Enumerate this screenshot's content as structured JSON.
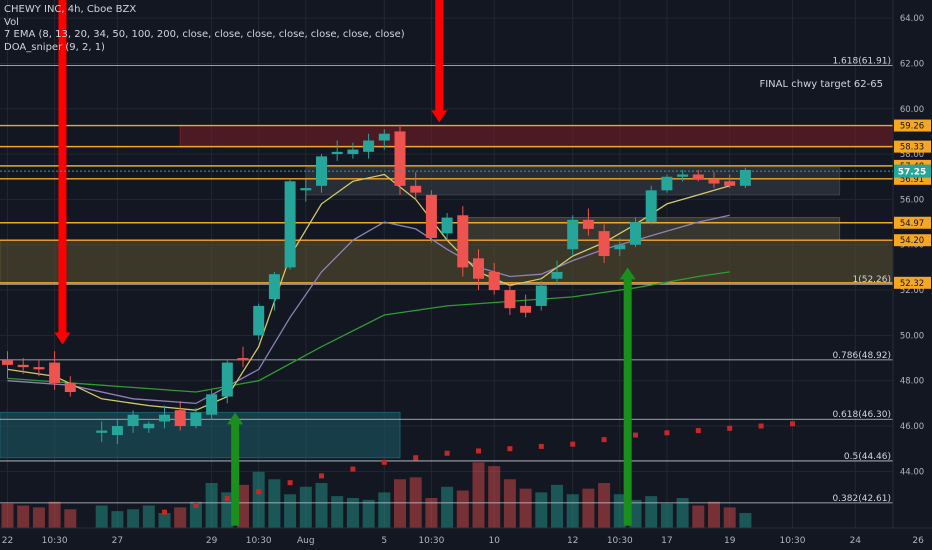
{
  "header": {
    "title": "CHEWY INC, 4h, Cboe BZX",
    "vol_label": "Vol",
    "ema_label": "7 EMA (8, 13, 20, 34, 50, 100, 200, close, close, close, close, close, close, close)",
    "sniper_label": "DOA_sniper (9, 2, 1)"
  },
  "annotations": {
    "target_note": "FINAL chwy target 62-65"
  },
  "colors": {
    "background": "#131722",
    "grid": "#232732",
    "up_candle": "#26a69a",
    "down_candle": "#ef5350",
    "orange_line": "#f5a623",
    "red_arrow": "#ff0000",
    "green_arrow": "#1b8f1b",
    "ema_fast": "#d4c96a",
    "ema_mid": "#8d82b8",
    "ema_slow": "#2e9c32",
    "sniper_dots": "#c62828"
  },
  "chart_data": {
    "type": "candlestick",
    "symbol": "CHEWY INC",
    "interval": "4h",
    "exchange": "Cboe BZX",
    "ylim": [
      41.5,
      64.8
    ],
    "y_ticks": [
      44.0,
      46.0,
      48.0,
      50.0,
      52.0,
      54.0,
      56.0,
      58.0,
      60.0,
      62.0,
      64.0
    ],
    "x_ticks": [
      {
        "label": "22",
        "i": 0
      },
      {
        "label": "10:30",
        "i": 3
      },
      {
        "label": "27",
        "i": 7
      },
      {
        "label": "29",
        "i": 13
      },
      {
        "label": "10:30",
        "i": 16
      },
      {
        "label": "Aug",
        "i": 19
      },
      {
        "label": "5",
        "i": 24
      },
      {
        "label": "10:30",
        "i": 27
      },
      {
        "label": "10",
        "i": 31
      },
      {
        "label": "12",
        "i": 36
      },
      {
        "label": "10:30",
        "i": 39
      },
      {
        "label": "17",
        "i": 42
      },
      {
        "label": "19",
        "i": 46
      },
      {
        "label": "10:30",
        "i": 50
      },
      {
        "label": "24",
        "i": 54
      },
      {
        "label": "26",
        "i": 58
      }
    ],
    "candles": [
      {
        "o": 48.9,
        "h": 49.3,
        "l": 48.1,
        "c": 48.7
      },
      {
        "o": 48.7,
        "h": 49.0,
        "l": 48.3,
        "c": 48.6
      },
      {
        "o": 48.6,
        "h": 48.9,
        "l": 48.2,
        "c": 48.5
      },
      {
        "o": 48.8,
        "h": 49.3,
        "l": 47.6,
        "c": 47.9
      },
      {
        "o": 47.9,
        "h": 48.2,
        "l": 47.3,
        "c": 47.5
      },
      {
        "o": 45.7,
        "h": 46.2,
        "l": 45.3,
        "c": 45.8
      },
      {
        "o": 45.6,
        "h": 46.3,
        "l": 45.2,
        "c": 46.0
      },
      {
        "o": 46.0,
        "h": 46.7,
        "l": 45.7,
        "c": 46.5
      },
      {
        "o": 45.9,
        "h": 46.2,
        "l": 45.7,
        "c": 46.1
      },
      {
        "o": 46.2,
        "h": 46.9,
        "l": 45.9,
        "c": 46.5
      },
      {
        "o": 46.7,
        "h": 47.1,
        "l": 45.8,
        "c": 46.0
      },
      {
        "o": 46.0,
        "h": 46.8,
        "l": 45.9,
        "c": 46.6
      },
      {
        "o": 46.5,
        "h": 47.6,
        "l": 46.3,
        "c": 47.4
      },
      {
        "o": 47.3,
        "h": 48.9,
        "l": 47.0,
        "c": 48.8
      },
      {
        "o": 49.0,
        "h": 49.5,
        "l": 48.6,
        "c": 48.9
      },
      {
        "o": 50.0,
        "h": 51.4,
        "l": 49.8,
        "c": 51.3
      },
      {
        "o": 51.6,
        "h": 52.8,
        "l": 51.1,
        "c": 52.7
      },
      {
        "o": 53.0,
        "h": 56.9,
        "l": 52.9,
        "c": 56.8
      },
      {
        "o": 56.4,
        "h": 56.9,
        "l": 55.9,
        "c": 56.5
      },
      {
        "o": 56.6,
        "h": 58.0,
        "l": 56.3,
        "c": 57.9
      },
      {
        "o": 58.0,
        "h": 58.6,
        "l": 57.7,
        "c": 58.1
      },
      {
        "o": 58.0,
        "h": 58.5,
        "l": 57.8,
        "c": 58.2
      },
      {
        "o": 58.1,
        "h": 58.9,
        "l": 57.8,
        "c": 58.6
      },
      {
        "o": 58.6,
        "h": 59.1,
        "l": 58.2,
        "c": 58.9
      },
      {
        "o": 59.0,
        "h": 59.3,
        "l": 56.2,
        "c": 56.6
      },
      {
        "o": 56.6,
        "h": 57.2,
        "l": 56.0,
        "c": 56.3
      },
      {
        "o": 56.2,
        "h": 56.4,
        "l": 54.1,
        "c": 54.3
      },
      {
        "o": 54.5,
        "h": 55.4,
        "l": 54.2,
        "c": 55.2
      },
      {
        "o": 55.3,
        "h": 55.7,
        "l": 52.6,
        "c": 53.0
      },
      {
        "o": 53.4,
        "h": 53.8,
        "l": 52.0,
        "c": 52.5
      },
      {
        "o": 52.8,
        "h": 53.2,
        "l": 51.8,
        "c": 52.0
      },
      {
        "o": 52.0,
        "h": 52.3,
        "l": 50.9,
        "c": 51.2
      },
      {
        "o": 51.3,
        "h": 51.8,
        "l": 50.8,
        "c": 51.0
      },
      {
        "o": 51.3,
        "h": 52.4,
        "l": 51.1,
        "c": 52.2
      },
      {
        "o": 52.5,
        "h": 53.3,
        "l": 52.3,
        "c": 52.8
      },
      {
        "o": 53.8,
        "h": 55.3,
        "l": 53.5,
        "c": 55.1
      },
      {
        "o": 55.1,
        "h": 55.6,
        "l": 54.4,
        "c": 54.7
      },
      {
        "o": 54.6,
        "h": 54.9,
        "l": 53.2,
        "c": 53.5
      },
      {
        "o": 53.8,
        "h": 54.3,
        "l": 53.5,
        "c": 54.0
      },
      {
        "o": 54.0,
        "h": 55.2,
        "l": 53.9,
        "c": 55.0
      },
      {
        "o": 55.0,
        "h": 56.6,
        "l": 54.9,
        "c": 56.4
      },
      {
        "o": 56.4,
        "h": 57.1,
        "l": 56.3,
        "c": 57.0
      },
      {
        "o": 57.0,
        "h": 57.3,
        "l": 56.8,
        "c": 57.1
      },
      {
        "o": 57.1,
        "h": 57.3,
        "l": 56.8,
        "c": 56.9
      },
      {
        "o": 56.9,
        "h": 57.2,
        "l": 56.5,
        "c": 56.7
      },
      {
        "o": 56.8,
        "h": 57.1,
        "l": 56.5,
        "c": 56.6
      },
      {
        "o": 56.6,
        "h": 57.4,
        "l": 56.5,
        "c": 57.3
      }
    ],
    "candle_slots": [
      0,
      1,
      2,
      3,
      4,
      6,
      7,
      8,
      9,
      10,
      11,
      12,
      13,
      14,
      15,
      16,
      17,
      18,
      19,
      20,
      21,
      22,
      23,
      24,
      25,
      26,
      27,
      28,
      29,
      30,
      31,
      32,
      33,
      34,
      35,
      36,
      37,
      38,
      39,
      40,
      41,
      42,
      43,
      44,
      45,
      46,
      47
    ],
    "volume": [
      13,
      12,
      11,
      14,
      10,
      12,
      9,
      10,
      12,
      8,
      11,
      14,
      24,
      19,
      23,
      30,
      26,
      18,
      22,
      24,
      17,
      16,
      15,
      19,
      26,
      27,
      16,
      22,
      20,
      35,
      33,
      26,
      21,
      19,
      23,
      18,
      21,
      24,
      18,
      15,
      17,
      13,
      16,
      12,
      14,
      11,
      8
    ],
    "ema_fast": [
      [
        0,
        48.5
      ],
      [
        3,
        48.2
      ],
      [
        6,
        47.2
      ],
      [
        9,
        46.9
      ],
      [
        12,
        46.7
      ],
      [
        14,
        47.3
      ],
      [
        16,
        49.5
      ],
      [
        18,
        53.5
      ],
      [
        20,
        55.8
      ],
      [
        22,
        56.8
      ],
      [
        24,
        57.1
      ],
      [
        26,
        56.0
      ],
      [
        28,
        54.2
      ],
      [
        30,
        52.8
      ],
      [
        32,
        52.2
      ],
      [
        34,
        52.5
      ],
      [
        36,
        53.5
      ],
      [
        38,
        54.1
      ],
      [
        40,
        54.9
      ],
      [
        42,
        55.8
      ],
      [
        44,
        56.2
      ],
      [
        46,
        56.6
      ]
    ],
    "ema_mid": [
      [
        0,
        48.0
      ],
      [
        4,
        47.8
      ],
      [
        8,
        47.2
      ],
      [
        12,
        47.0
      ],
      [
        16,
        48.5
      ],
      [
        18,
        50.8
      ],
      [
        20,
        52.8
      ],
      [
        22,
        54.2
      ],
      [
        24,
        55.0
      ],
      [
        26,
        54.7
      ],
      [
        28,
        53.8
      ],
      [
        30,
        53.0
      ],
      [
        32,
        52.6
      ],
      [
        34,
        52.7
      ],
      [
        36,
        53.3
      ],
      [
        38,
        53.8
      ],
      [
        40,
        54.2
      ],
      [
        42,
        54.6
      ],
      [
        44,
        55.0
      ],
      [
        46,
        55.3
      ]
    ],
    "ema_slow": [
      [
        0,
        48.1
      ],
      [
        6,
        47.8
      ],
      [
        12,
        47.5
      ],
      [
        16,
        48.0
      ],
      [
        20,
        49.5
      ],
      [
        24,
        50.9
      ],
      [
        28,
        51.3
      ],
      [
        32,
        51.5
      ],
      [
        36,
        51.7
      ],
      [
        40,
        52.1
      ],
      [
        44,
        52.6
      ],
      [
        46,
        52.8
      ]
    ],
    "sniper_dots": [
      [
        10,
        42.2
      ],
      [
        12,
        42.5
      ],
      [
        14,
        42.8
      ],
      [
        16,
        43.1
      ],
      [
        18,
        43.5
      ],
      [
        20,
        43.8
      ],
      [
        22,
        44.1
      ],
      [
        24,
        44.4
      ],
      [
        26,
        44.6
      ],
      [
        28,
        44.8
      ],
      [
        30,
        44.9
      ],
      [
        32,
        45.0
      ],
      [
        34,
        45.1
      ],
      [
        36,
        45.2
      ],
      [
        38,
        45.4
      ],
      [
        40,
        45.6
      ],
      [
        42,
        45.7
      ],
      [
        44,
        45.8
      ],
      [
        46,
        45.9
      ],
      [
        48,
        46.0
      ],
      [
        50,
        46.1
      ]
    ],
    "horizontal_levels": [
      {
        "price": 59.26,
        "label": "59.26",
        "style": "orange"
      },
      {
        "price": 58.33,
        "label": "58.33",
        "style": "orange"
      },
      {
        "price": 57.48,
        "label": "57.48",
        "style": "orange"
      },
      {
        "price": 56.91,
        "label": "56.91",
        "style": "orange"
      },
      {
        "price": 54.97,
        "label": "54.97",
        "style": "orange"
      },
      {
        "price": 54.2,
        "label": "54.20",
        "style": "orange"
      },
      {
        "price": 52.32,
        "label": "52.32",
        "style": "orange"
      }
    ],
    "current_price": {
      "price": 57.25,
      "label": "57.25"
    },
    "fib_levels": [
      {
        "price": 61.91,
        "label": "1.618(61.91)"
      },
      {
        "price": 52.26,
        "label": "1(52.26)"
      },
      {
        "price": 48.92,
        "label": "0.786(48.92)"
      },
      {
        "price": 46.3,
        "label": "0.618(46.30)"
      },
      {
        "price": 44.46,
        "label": "0.5(44.46)"
      },
      {
        "price": 42.61,
        "label": "0.382(42.61)"
      }
    ],
    "zones": [
      {
        "from_i": 11,
        "to_i": 60,
        "top": 59.26,
        "bottom": 58.33,
        "color": "#7a1e24"
      },
      {
        "from_i": -1,
        "to_i": 60,
        "top": 54.2,
        "bottom": 52.32,
        "color": "#5c5230"
      },
      {
        "from_i": -1,
        "to_i": 25,
        "top": 46.6,
        "bottom": 44.6,
        "color": "#1b5d6a"
      },
      {
        "from_i": 19,
        "to_i": 53,
        "top": 57.4,
        "bottom": 56.2,
        "color": "#3b3f4a"
      },
      {
        "from_i": 29,
        "to_i": 53,
        "top": 55.2,
        "bottom": 54.2,
        "color": "#55503a"
      }
    ],
    "arrows": [
      {
        "i": 3.5,
        "dir": "down",
        "from": 66.0,
        "to": 49.6,
        "color": "red"
      },
      {
        "i": 27.5,
        "dir": "down",
        "from": 66.0,
        "to": 59.4,
        "color": "red"
      },
      {
        "i": 14.5,
        "dir": "up",
        "from": 41.6,
        "to": 46.6,
        "color": "green"
      },
      {
        "i": 39.5,
        "dir": "up",
        "from": 41.6,
        "to": 53.0,
        "color": "green"
      }
    ]
  }
}
